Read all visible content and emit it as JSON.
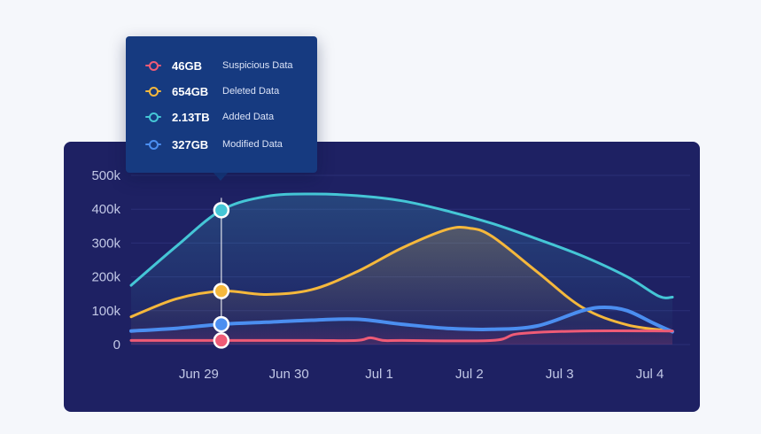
{
  "chart_data": {
    "type": "area",
    "title": "",
    "xlabel": "",
    "ylabel": "",
    "ylim": [
      0,
      500000
    ],
    "x_range": [
      0,
      6
    ],
    "yticks": [
      {
        "value": 0,
        "label": "0"
      },
      {
        "value": 100000,
        "label": "100k"
      },
      {
        "value": 200000,
        "label": "200k"
      },
      {
        "value": 300000,
        "label": "300k"
      },
      {
        "value": 400000,
        "label": "400k"
      },
      {
        "value": 500000,
        "label": "500k"
      }
    ],
    "xticks": [
      {
        "value": 0.75,
        "label": "Jun 29"
      },
      {
        "value": 1.75,
        "label": "Jun 30"
      },
      {
        "value": 2.75,
        "label": "Jul 1"
      },
      {
        "value": 3.75,
        "label": "Jul 2"
      },
      {
        "value": 4.75,
        "label": "Jul 3"
      },
      {
        "value": 5.75,
        "label": "Jul 4"
      }
    ],
    "grid": true,
    "highlight_x": 1.0,
    "series": [
      {
        "name": "Added Data",
        "color": "#45c6d6",
        "filled": true,
        "points": [
          [
            0.0,
            175000
          ],
          [
            0.5,
            290000
          ],
          [
            1.0,
            397000
          ],
          [
            1.5,
            438000
          ],
          [
            2.0,
            445000
          ],
          [
            2.5,
            440000
          ],
          [
            3.0,
            425000
          ],
          [
            3.5,
            395000
          ],
          [
            4.0,
            358000
          ],
          [
            4.5,
            312000
          ],
          [
            5.0,
            262000
          ],
          [
            5.5,
            200000
          ],
          [
            5.85,
            143000
          ],
          [
            6.0,
            140000
          ]
        ]
      },
      {
        "name": "Deleted Data",
        "color": "#f5b83c",
        "filled": true,
        "points": [
          [
            0.0,
            82000
          ],
          [
            0.5,
            135000
          ],
          [
            1.0,
            158000
          ],
          [
            1.5,
            148000
          ],
          [
            2.0,
            162000
          ],
          [
            2.5,
            215000
          ],
          [
            3.0,
            285000
          ],
          [
            3.5,
            340000
          ],
          [
            3.75,
            344000
          ],
          [
            4.0,
            320000
          ],
          [
            4.5,
            215000
          ],
          [
            5.0,
            110000
          ],
          [
            5.5,
            58000
          ],
          [
            6.0,
            40000
          ]
        ]
      },
      {
        "name": "Modified Data",
        "color": "#4b8ef0",
        "filled": false,
        "points": [
          [
            0.0,
            40000
          ],
          [
            0.5,
            48000
          ],
          [
            1.0,
            60000
          ],
          [
            1.5,
            66000
          ],
          [
            2.0,
            72000
          ],
          [
            2.5,
            75000
          ],
          [
            3.0,
            60000
          ],
          [
            3.5,
            48000
          ],
          [
            4.0,
            45000
          ],
          [
            4.5,
            55000
          ],
          [
            5.0,
            100000
          ],
          [
            5.25,
            110000
          ],
          [
            5.5,
            100000
          ],
          [
            5.8,
            62000
          ],
          [
            6.0,
            38000
          ]
        ]
      },
      {
        "name": "Suspicious Data",
        "color": "#ef5b76",
        "filled": false,
        "points": [
          [
            0.0,
            12000
          ],
          [
            1.0,
            12000
          ],
          [
            2.0,
            12000
          ],
          [
            2.5,
            12000
          ],
          [
            2.65,
            20000
          ],
          [
            2.8,
            12000
          ],
          [
            3.0,
            12000
          ],
          [
            4.0,
            12000
          ],
          [
            4.3,
            32000
          ],
          [
            5.0,
            40000
          ],
          [
            6.0,
            40000
          ]
        ]
      }
    ],
    "markers": [
      {
        "series": "Added Data",
        "x": 1.0,
        "y": 397000,
        "color": "#45c6d6"
      },
      {
        "series": "Deleted Data",
        "x": 1.0,
        "y": 158000,
        "color": "#f5b83c"
      },
      {
        "series": "Modified Data",
        "x": 1.0,
        "y": 60000,
        "color": "#4b8ef0"
      },
      {
        "series": "Suspicious Data",
        "x": 1.0,
        "y": 12000,
        "color": "#ef5b76"
      }
    ]
  },
  "tooltip": {
    "rows": [
      {
        "value": "46GB",
        "label": "Suspicious Data",
        "color": "#ef5b76"
      },
      {
        "value": "654GB",
        "label": "Deleted Data",
        "color": "#f5b83c"
      },
      {
        "value": "2.13TB",
        "label": "Added Data",
        "color": "#45c6d6"
      },
      {
        "value": "327GB",
        "label": "Modified Data",
        "color": "#4b8ef0"
      }
    ]
  }
}
